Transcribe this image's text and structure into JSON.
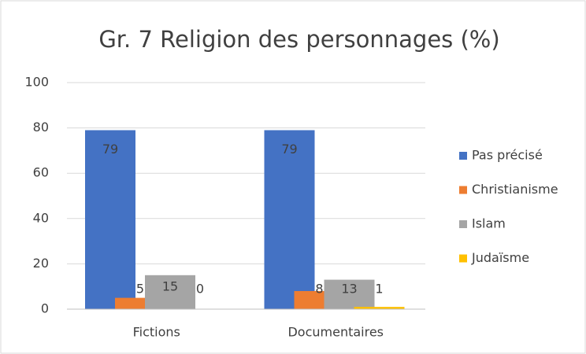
{
  "chart_data": {
    "type": "bar",
    "title": "Gr. 7 Religion des personnages (%)",
    "categories": [
      "Fictions",
      "Documentaires"
    ],
    "series": [
      {
        "name": "Pas précisé",
        "color": "#4472c4",
        "values": [
          79,
          79
        ]
      },
      {
        "name": "Christianisme",
        "color": "#ed7d31",
        "values": [
          5,
          8
        ]
      },
      {
        "name": "Islam",
        "color": "#a5a5a5",
        "values": [
          15,
          13
        ]
      },
      {
        "name": "Judaïsme",
        "color": "#ffc000",
        "values": [
          0,
          1
        ]
      }
    ],
    "ylim": [
      0,
      100
    ],
    "yticks": [
      0,
      20,
      40,
      60,
      80,
      100
    ],
    "grid": true,
    "legend": "right"
  }
}
